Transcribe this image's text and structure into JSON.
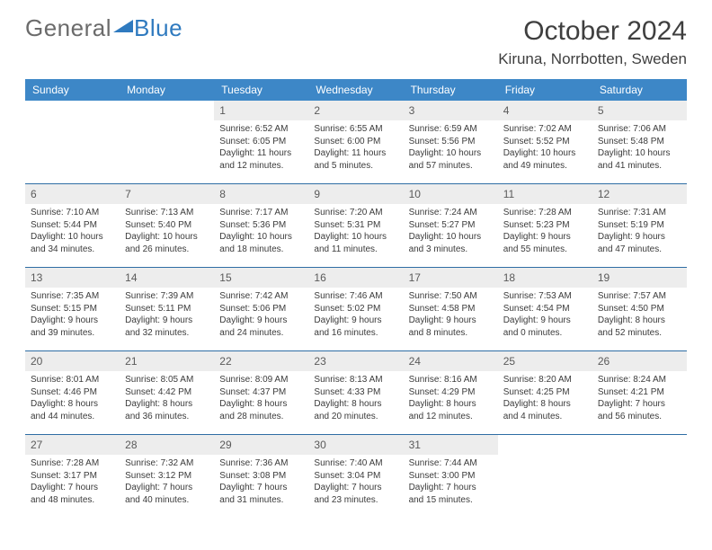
{
  "brand": {
    "text1": "General",
    "text2": "Blue"
  },
  "title": "October 2024",
  "location": "Kiruna, Norrbotten, Sweden",
  "colors": {
    "header_bg": "#3d87c7",
    "daynum_bg": "#ededed",
    "row_border": "#2e6da4"
  },
  "days": [
    "Sunday",
    "Monday",
    "Tuesday",
    "Wednesday",
    "Thursday",
    "Friday",
    "Saturday"
  ],
  "weeks": [
    [
      null,
      null,
      {
        "n": "1",
        "sr": "Sunrise: 6:52 AM",
        "ss": "Sunset: 6:05 PM",
        "dl": "Daylight: 11 hours and 12 minutes."
      },
      {
        "n": "2",
        "sr": "Sunrise: 6:55 AM",
        "ss": "Sunset: 6:00 PM",
        "dl": "Daylight: 11 hours and 5 minutes."
      },
      {
        "n": "3",
        "sr": "Sunrise: 6:59 AM",
        "ss": "Sunset: 5:56 PM",
        "dl": "Daylight: 10 hours and 57 minutes."
      },
      {
        "n": "4",
        "sr": "Sunrise: 7:02 AM",
        "ss": "Sunset: 5:52 PM",
        "dl": "Daylight: 10 hours and 49 minutes."
      },
      {
        "n": "5",
        "sr": "Sunrise: 7:06 AM",
        "ss": "Sunset: 5:48 PM",
        "dl": "Daylight: 10 hours and 41 minutes."
      }
    ],
    [
      {
        "n": "6",
        "sr": "Sunrise: 7:10 AM",
        "ss": "Sunset: 5:44 PM",
        "dl": "Daylight: 10 hours and 34 minutes."
      },
      {
        "n": "7",
        "sr": "Sunrise: 7:13 AM",
        "ss": "Sunset: 5:40 PM",
        "dl": "Daylight: 10 hours and 26 minutes."
      },
      {
        "n": "8",
        "sr": "Sunrise: 7:17 AM",
        "ss": "Sunset: 5:36 PM",
        "dl": "Daylight: 10 hours and 18 minutes."
      },
      {
        "n": "9",
        "sr": "Sunrise: 7:20 AM",
        "ss": "Sunset: 5:31 PM",
        "dl": "Daylight: 10 hours and 11 minutes."
      },
      {
        "n": "10",
        "sr": "Sunrise: 7:24 AM",
        "ss": "Sunset: 5:27 PM",
        "dl": "Daylight: 10 hours and 3 minutes."
      },
      {
        "n": "11",
        "sr": "Sunrise: 7:28 AM",
        "ss": "Sunset: 5:23 PM",
        "dl": "Daylight: 9 hours and 55 minutes."
      },
      {
        "n": "12",
        "sr": "Sunrise: 7:31 AM",
        "ss": "Sunset: 5:19 PM",
        "dl": "Daylight: 9 hours and 47 minutes."
      }
    ],
    [
      {
        "n": "13",
        "sr": "Sunrise: 7:35 AM",
        "ss": "Sunset: 5:15 PM",
        "dl": "Daylight: 9 hours and 39 minutes."
      },
      {
        "n": "14",
        "sr": "Sunrise: 7:39 AM",
        "ss": "Sunset: 5:11 PM",
        "dl": "Daylight: 9 hours and 32 minutes."
      },
      {
        "n": "15",
        "sr": "Sunrise: 7:42 AM",
        "ss": "Sunset: 5:06 PM",
        "dl": "Daylight: 9 hours and 24 minutes."
      },
      {
        "n": "16",
        "sr": "Sunrise: 7:46 AM",
        "ss": "Sunset: 5:02 PM",
        "dl": "Daylight: 9 hours and 16 minutes."
      },
      {
        "n": "17",
        "sr": "Sunrise: 7:50 AM",
        "ss": "Sunset: 4:58 PM",
        "dl": "Daylight: 9 hours and 8 minutes."
      },
      {
        "n": "18",
        "sr": "Sunrise: 7:53 AM",
        "ss": "Sunset: 4:54 PM",
        "dl": "Daylight: 9 hours and 0 minutes."
      },
      {
        "n": "19",
        "sr": "Sunrise: 7:57 AM",
        "ss": "Sunset: 4:50 PM",
        "dl": "Daylight: 8 hours and 52 minutes."
      }
    ],
    [
      {
        "n": "20",
        "sr": "Sunrise: 8:01 AM",
        "ss": "Sunset: 4:46 PM",
        "dl": "Daylight: 8 hours and 44 minutes."
      },
      {
        "n": "21",
        "sr": "Sunrise: 8:05 AM",
        "ss": "Sunset: 4:42 PM",
        "dl": "Daylight: 8 hours and 36 minutes."
      },
      {
        "n": "22",
        "sr": "Sunrise: 8:09 AM",
        "ss": "Sunset: 4:37 PM",
        "dl": "Daylight: 8 hours and 28 minutes."
      },
      {
        "n": "23",
        "sr": "Sunrise: 8:13 AM",
        "ss": "Sunset: 4:33 PM",
        "dl": "Daylight: 8 hours and 20 minutes."
      },
      {
        "n": "24",
        "sr": "Sunrise: 8:16 AM",
        "ss": "Sunset: 4:29 PM",
        "dl": "Daylight: 8 hours and 12 minutes."
      },
      {
        "n": "25",
        "sr": "Sunrise: 8:20 AM",
        "ss": "Sunset: 4:25 PM",
        "dl": "Daylight: 8 hours and 4 minutes."
      },
      {
        "n": "26",
        "sr": "Sunrise: 8:24 AM",
        "ss": "Sunset: 4:21 PM",
        "dl": "Daylight: 7 hours and 56 minutes."
      }
    ],
    [
      {
        "n": "27",
        "sr": "Sunrise: 7:28 AM",
        "ss": "Sunset: 3:17 PM",
        "dl": "Daylight: 7 hours and 48 minutes."
      },
      {
        "n": "28",
        "sr": "Sunrise: 7:32 AM",
        "ss": "Sunset: 3:12 PM",
        "dl": "Daylight: 7 hours and 40 minutes."
      },
      {
        "n": "29",
        "sr": "Sunrise: 7:36 AM",
        "ss": "Sunset: 3:08 PM",
        "dl": "Daylight: 7 hours and 31 minutes."
      },
      {
        "n": "30",
        "sr": "Sunrise: 7:40 AM",
        "ss": "Sunset: 3:04 PM",
        "dl": "Daylight: 7 hours and 23 minutes."
      },
      {
        "n": "31",
        "sr": "Sunrise: 7:44 AM",
        "ss": "Sunset: 3:00 PM",
        "dl": "Daylight: 7 hours and 15 minutes."
      },
      null,
      null
    ]
  ]
}
